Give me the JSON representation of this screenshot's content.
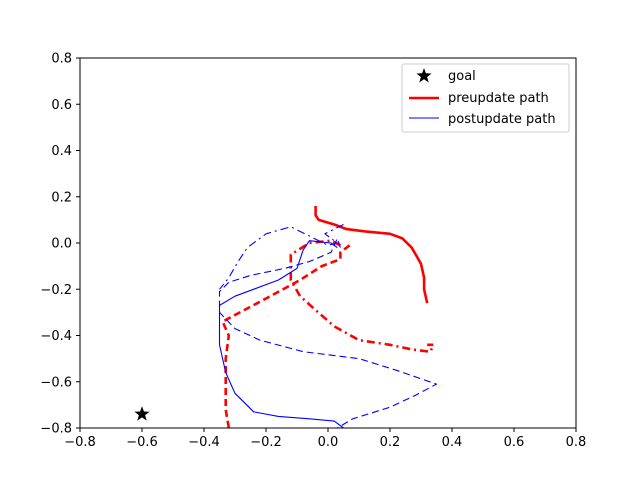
{
  "chart_data": {
    "type": "line",
    "xlim": [
      -0.8,
      0.8
    ],
    "ylim": [
      -0.8,
      0.8
    ],
    "x_ticks": [
      "−0.8",
      "−0.6",
      "−0.4",
      "−0.2",
      "0.0",
      "0.2",
      "0.4",
      "0.6",
      "0.8"
    ],
    "y_ticks": [
      "−0.8",
      "−0.6",
      "−0.4",
      "−0.2",
      "0.0",
      "0.2",
      "0.4",
      "0.6",
      "0.8"
    ],
    "x_tick_values": [
      -0.8,
      -0.6,
      -0.4,
      -0.2,
      0.0,
      0.2,
      0.4,
      0.6,
      0.8
    ],
    "y_tick_values": [
      -0.8,
      -0.6,
      -0.4,
      -0.2,
      0.0,
      0.2,
      0.4,
      0.6,
      0.8
    ],
    "grid": false,
    "legend_position": "top-right",
    "legend": [
      {
        "label": "goal",
        "marker": "star",
        "color": "#000000"
      },
      {
        "label": "preupdate path",
        "color": "#ff0000",
        "linestyle": "solid",
        "linewidth": "thick"
      },
      {
        "label": "postupdate path",
        "color": "#0000ff",
        "linestyle": "solid",
        "linewidth": "thin"
      }
    ],
    "goal": {
      "x": -0.6,
      "y": -0.74,
      "color": "#000000"
    },
    "series": [
      {
        "group": "preupdate path",
        "color": "#ff0000",
        "linestyle": "solid",
        "linewidth": "thick",
        "points": [
          [
            -0.04,
            0.16
          ],
          [
            -0.04,
            0.12
          ],
          [
            -0.03,
            0.1
          ],
          [
            0.02,
            0.08
          ],
          [
            0.06,
            0.06
          ],
          [
            0.12,
            0.05
          ],
          [
            0.2,
            0.04
          ],
          [
            0.24,
            0.02
          ],
          [
            0.27,
            -0.02
          ],
          [
            0.3,
            -0.09
          ],
          [
            0.31,
            -0.15
          ],
          [
            0.31,
            -0.2
          ],
          [
            0.32,
            -0.26
          ]
        ]
      },
      {
        "group": "preupdate path",
        "color": "#ff0000",
        "linestyle": "dashed",
        "linewidth": "thick",
        "points": [
          [
            0.07,
            -0.01
          ],
          [
            0.04,
            -0.04
          ],
          [
            0.04,
            -0.07
          ],
          [
            -0.02,
            -0.1
          ],
          [
            -0.09,
            -0.16
          ],
          [
            -0.2,
            -0.24
          ],
          [
            -0.34,
            -0.34
          ],
          [
            -0.32,
            -0.4
          ],
          [
            -0.33,
            -0.5
          ],
          [
            -0.33,
            -0.62
          ],
          [
            -0.33,
            -0.72
          ],
          [
            -0.32,
            -0.8
          ]
        ]
      },
      {
        "group": "preupdate path",
        "color": "#ff0000",
        "linestyle": "dashdot",
        "linewidth": "thick",
        "points": [
          [
            0.04,
            -0.01
          ],
          [
            0.01,
            0.01
          ],
          [
            -0.06,
            0.0
          ],
          [
            -0.12,
            -0.05
          ],
          [
            -0.12,
            -0.16
          ],
          [
            -0.09,
            -0.23
          ],
          [
            -0.04,
            -0.29
          ],
          [
            0.02,
            -0.36
          ],
          [
            0.1,
            -0.42
          ],
          [
            0.2,
            -0.44
          ],
          [
            0.27,
            -0.46
          ],
          [
            0.33,
            -0.47
          ],
          [
            0.34,
            -0.44
          ],
          [
            0.32,
            -0.44
          ]
        ]
      },
      {
        "group": "postupdate path",
        "color": "#0000ff",
        "linestyle": "solid",
        "linewidth": "thin",
        "points": [
          [
            0.03,
            -0.02
          ],
          [
            0.01,
            0.0
          ],
          [
            -0.06,
            0.01
          ],
          [
            -0.08,
            -0.03
          ],
          [
            -0.1,
            -0.11
          ],
          [
            -0.16,
            -0.16
          ],
          [
            -0.3,
            -0.23
          ],
          [
            -0.35,
            -0.27
          ],
          [
            -0.35,
            -0.44
          ],
          [
            -0.33,
            -0.56
          ],
          [
            -0.3,
            -0.65
          ],
          [
            -0.24,
            -0.73
          ],
          [
            -0.16,
            -0.75
          ],
          [
            -0.06,
            -0.76
          ],
          [
            0.02,
            -0.77
          ],
          [
            0.05,
            -0.8
          ]
        ]
      },
      {
        "group": "postupdate path",
        "color": "#0000ff",
        "linestyle": "dashed",
        "linewidth": "thin",
        "points": [
          [
            0.04,
            -0.02
          ],
          [
            0.03,
            0.02
          ],
          [
            0.01,
            -0.04
          ],
          [
            -0.06,
            -0.08
          ],
          [
            -0.14,
            -0.11
          ],
          [
            -0.25,
            -0.14
          ],
          [
            -0.32,
            -0.17
          ],
          [
            -0.35,
            -0.21
          ],
          [
            -0.35,
            -0.3
          ],
          [
            -0.3,
            -0.37
          ],
          [
            -0.22,
            -0.42
          ],
          [
            -0.08,
            -0.47
          ],
          [
            0.1,
            -0.5
          ],
          [
            0.22,
            -0.55
          ],
          [
            0.35,
            -0.61
          ],
          [
            0.28,
            -0.66
          ],
          [
            0.2,
            -0.71
          ],
          [
            0.08,
            -0.76
          ],
          [
            0.03,
            -0.8
          ]
        ]
      },
      {
        "group": "postupdate path",
        "color": "#0000ff",
        "linestyle": "dashdot",
        "linewidth": "thin",
        "points": [
          [
            0.05,
            0.08
          ],
          [
            0.02,
            0.06
          ],
          [
            -0.01,
            0.04
          ],
          [
            0.03,
            0.0
          ],
          [
            0.0,
            -0.01
          ],
          [
            -0.12,
            0.07
          ],
          [
            -0.2,
            0.04
          ],
          [
            -0.26,
            -0.02
          ],
          [
            -0.29,
            -0.08
          ],
          [
            -0.32,
            -0.15
          ],
          [
            -0.35,
            -0.2
          ]
        ]
      }
    ]
  }
}
